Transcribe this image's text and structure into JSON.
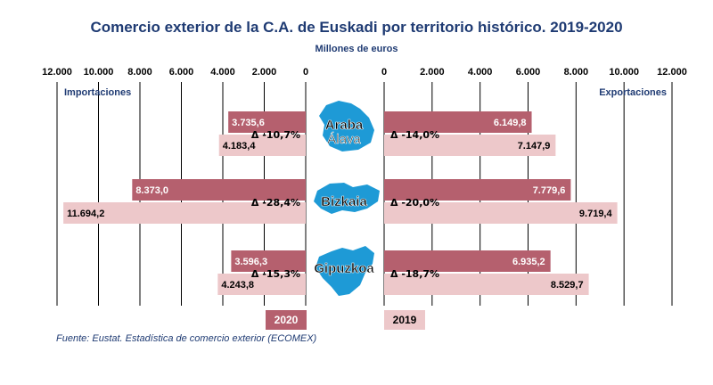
{
  "chart_data": {
    "type": "bar",
    "title": "Comercio exterior de la C.A. de Euskadi por territorio histórico. 2019-2020",
    "unit_label": "Millones de euros",
    "left_panel": {
      "label": "Importaciones",
      "axis_ticks": [
        "12.000",
        "10.000",
        "8.000",
        "6.000",
        "4.000",
        "2.000",
        "0"
      ],
      "xlim": [
        0,
        12000
      ]
    },
    "right_panel": {
      "label": "Exportaciones",
      "axis_ticks": [
        "0",
        "2.000",
        "4.000",
        "6.000",
        "8.000",
        "10.000",
        "12.000"
      ],
      "xlim": [
        0,
        12000
      ]
    },
    "categories": [
      {
        "name": "Araba",
        "name2": "Álava",
        "imports_2020": 3735.6,
        "imports_2020_label": "3.735,6",
        "imports_2019": 4183.4,
        "imports_2019_label": "4.183,4",
        "imports_delta": "Δ  -10,7%",
        "exports_2020": 6149.8,
        "exports_2020_label": "6.149,8",
        "exports_2019": 7147.9,
        "exports_2019_label": "7.147,9",
        "exports_delta": "Δ  -14,0%"
      },
      {
        "name": "Bizkaia",
        "name2": "",
        "imports_2020": 8373.0,
        "imports_2020_label": "8.373,0",
        "imports_2019": 11694.2,
        "imports_2019_label": "11.694,2",
        "imports_delta": "Δ  -28,4%",
        "exports_2020": 7779.6,
        "exports_2020_label": "7.779,6",
        "exports_2019": 9719.4,
        "exports_2019_label": "9.719,4",
        "exports_delta": "Δ  -20,0%"
      },
      {
        "name": "Gipuzkoa",
        "name2": "",
        "imports_2020": 3596.3,
        "imports_2020_label": "3.596,3",
        "imports_2019": 4243.8,
        "imports_2019_label": "4.243,8",
        "imports_delta": "Δ  -15,3%",
        "exports_2020": 6935.2,
        "exports_2020_label": "6.935,2",
        "exports_2019": 8529.7,
        "exports_2019_label": "8.529,7",
        "exports_delta": "Δ  -18,7%"
      }
    ],
    "legend": [
      {
        "name": "2020",
        "color": "#b5606e"
      },
      {
        "name": "2019",
        "color": "#edc8ca"
      }
    ],
    "colors": {
      "title": "#1f3b73",
      "map": "#1e9ad6",
      "axis": "#000000"
    }
  },
  "source": "Fuente: Eustat. Estadística de comercio exterior (ECOMEX)"
}
